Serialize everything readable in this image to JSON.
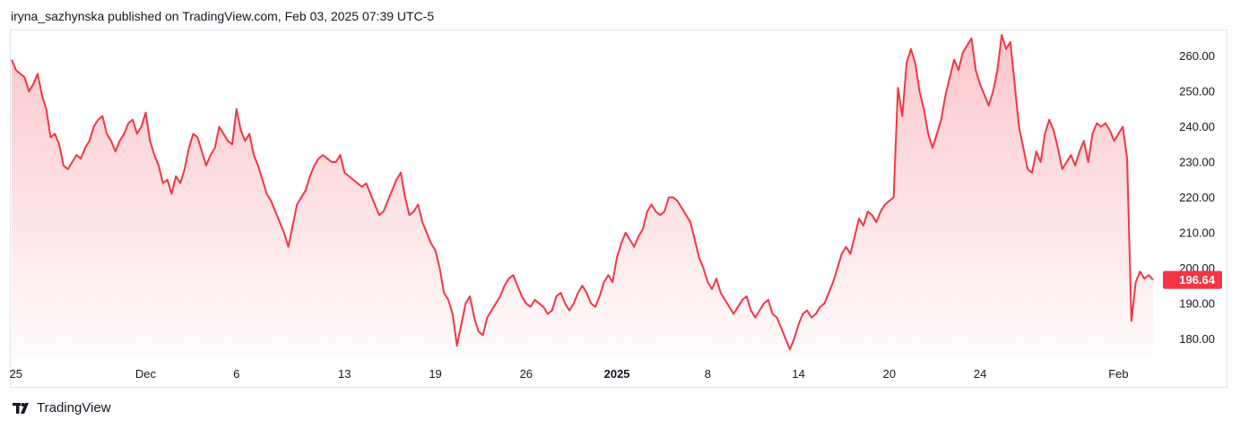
{
  "header": {
    "published_text": "iryna_sazhynska published on TradingView.com, Feb 03, 2025 07:39 UTC-5"
  },
  "footer": {
    "logo_text": "TradingView"
  },
  "colors": {
    "line": "#f23645",
    "fill_top": "#f23645",
    "badge": "#f23645",
    "axis_text": "#131722",
    "border": "#e0e3eb"
  },
  "chart_data": {
    "type": "area",
    "title": "",
    "xlabel": "",
    "ylabel": "",
    "ylim": [
      175,
      267
    ],
    "y_ticks": [
      "180.00",
      "190.00",
      "200.00",
      "210.00",
      "220.00",
      "230.00",
      "240.00",
      "250.00",
      "260.00"
    ],
    "last_price": "196.64",
    "x_ticks": [
      {
        "label": "25",
        "index": 1,
        "bold": false
      },
      {
        "label": "Dec",
        "index": 31,
        "bold": false
      },
      {
        "label": "6",
        "index": 52,
        "bold": false
      },
      {
        "label": "13",
        "index": 77,
        "bold": false
      },
      {
        "label": "19",
        "index": 98,
        "bold": false
      },
      {
        "label": "26",
        "index": 119,
        "bold": false
      },
      {
        "label": "2025",
        "index": 140,
        "bold": true
      },
      {
        "label": "8",
        "index": 161,
        "bold": false
      },
      {
        "label": "14",
        "index": 182,
        "bold": false
      },
      {
        "label": "20",
        "index": 203,
        "bold": false
      },
      {
        "label": "24",
        "index": 224,
        "bold": false
      },
      {
        "label": "Feb",
        "index": 256,
        "bold": false
      }
    ],
    "series": [
      {
        "values": [
          259,
          256,
          255,
          254,
          250,
          252,
          255,
          249,
          245,
          237,
          238,
          235,
          229,
          228,
          230,
          232,
          231,
          234,
          236,
          240,
          242,
          243,
          238,
          236,
          233,
          236,
          238,
          241,
          242,
          238,
          240,
          244,
          236,
          232,
          229,
          224,
          225,
          221,
          226,
          224,
          228,
          234,
          238,
          237,
          233,
          229,
          232,
          234,
          240,
          238,
          236,
          235,
          245,
          239,
          236,
          238,
          232,
          229,
          225,
          221,
          219,
          216,
          213,
          210,
          206,
          212,
          218,
          220,
          222,
          226,
          229,
          231,
          232,
          231,
          230,
          230,
          232,
          227,
          226,
          225,
          224,
          223,
          224,
          221,
          218,
          215,
          216,
          219,
          222,
          225,
          227,
          220,
          215,
          216,
          218,
          213,
          210,
          207,
          205,
          200,
          193,
          191,
          187,
          178,
          184,
          190,
          192,
          186,
          182,
          181,
          186,
          188,
          190,
          192,
          195,
          197,
          198,
          195,
          192,
          190,
          189,
          191,
          190,
          189,
          187,
          188,
          192,
          193,
          190,
          188,
          190,
          193,
          195,
          193,
          190,
          189,
          192,
          196,
          198,
          196,
          203,
          207,
          210,
          208,
          206,
          209,
          211,
          216,
          218,
          216,
          215,
          216,
          220,
          220,
          219,
          217,
          215,
          213,
          208,
          203,
          200,
          196,
          194,
          197,
          193,
          191,
          189,
          187,
          189,
          191,
          192,
          188,
          186,
          188,
          190,
          191,
          187,
          186,
          183,
          180,
          177,
          180,
          184,
          187,
          188,
          186,
          187,
          189,
          190,
          193,
          196,
          200,
          204,
          206,
          204,
          209,
          214,
          212,
          216,
          215,
          213,
          216,
          218,
          219,
          220,
          251,
          243,
          258,
          262,
          258,
          250,
          245,
          238,
          234,
          238,
          242,
          249,
          254,
          259,
          256,
          261,
          263,
          265,
          256,
          252,
          249,
          246,
          250,
          256,
          266,
          262,
          264,
          252,
          240,
          234,
          228,
          227,
          233,
          230,
          238,
          242,
          239,
          234,
          228,
          230,
          232,
          229,
          233,
          236,
          230,
          238,
          241,
          240,
          241,
          239,
          236,
          238,
          240,
          231,
          185,
          196,
          199,
          197,
          198,
          196.64
        ]
      }
    ]
  }
}
